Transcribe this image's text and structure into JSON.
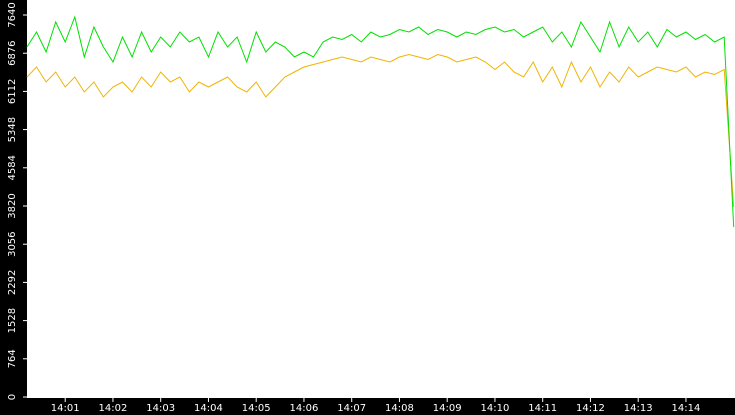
{
  "chart_data": {
    "type": "line",
    "categories": [
      null,
      null,
      null,
      null,
      "14:01",
      null,
      null,
      null,
      null,
      "14:02",
      null,
      null,
      null,
      null,
      "14:03",
      null,
      null,
      null,
      null,
      "14:04",
      null,
      null,
      null,
      null,
      "14:05",
      null,
      null,
      null,
      null,
      "14:06",
      null,
      null,
      null,
      null,
      "14:07",
      null,
      null,
      null,
      null,
      "14:08",
      null,
      null,
      null,
      null,
      "14:09",
      null,
      null,
      null,
      null,
      "14:10",
      null,
      null,
      null,
      null,
      "14:11",
      null,
      null,
      null,
      null,
      "14:12",
      null,
      null,
      null,
      null,
      "14:13",
      null,
      null,
      null,
      null,
      "14:14",
      null,
      null,
      null,
      null,
      null
    ],
    "series": [
      {
        "color": "#00e000",
        "values": [
          7000,
          7300,
          6900,
          7500,
          7100,
          7600,
          6800,
          7400,
          7000,
          6700,
          7200,
          6800,
          7300,
          6900,
          7200,
          7000,
          7300,
          7100,
          7200,
          6800,
          7300,
          7000,
          7200,
          6700,
          7300,
          6900,
          7100,
          7000,
          6800,
          6900,
          6800,
          7100,
          7200,
          7150,
          7250,
          7100,
          7300,
          7200,
          7250,
          7350,
          7300,
          7400,
          7250,
          7350,
          7300,
          7200,
          7300,
          7250,
          7350,
          7400,
          7300,
          7350,
          7200,
          7300,
          7400,
          7100,
          7300,
          7000,
          7500,
          7200,
          6900,
          7500,
          7000,
          7400,
          7100,
          7300,
          7000,
          7350,
          7200,
          7300,
          7150,
          7250,
          7100,
          7200,
          3400
        ]
      },
      {
        "color": "#f0b400",
        "values": [
          6400,
          6600,
          6300,
          6500,
          6200,
          6400,
          6100,
          6300,
          6000,
          6200,
          6300,
          6100,
          6400,
          6200,
          6500,
          6300,
          6400,
          6100,
          6300,
          6200,
          6300,
          6400,
          6200,
          6100,
          6300,
          6000,
          6200,
          6400,
          6500,
          6600,
          6650,
          6700,
          6750,
          6800,
          6750,
          6700,
          6800,
          6750,
          6700,
          6800,
          6850,
          6800,
          6750,
          6850,
          6800,
          6700,
          6750,
          6800,
          6700,
          6550,
          6700,
          6500,
          6400,
          6700,
          6300,
          6600,
          6200,
          6700,
          6300,
          6600,
          6200,
          6500,
          6300,
          6600,
          6400,
          6500,
          6600,
          6550,
          6500,
          6600,
          6400,
          6500,
          6450,
          6550,
          3800
        ]
      }
    ],
    "ylim": [
      0,
      7640
    ],
    "yticks": [
      0,
      764,
      1528,
      2292,
      3056,
      3820,
      4584,
      5348,
      6112,
      6876,
      7640
    ]
  }
}
